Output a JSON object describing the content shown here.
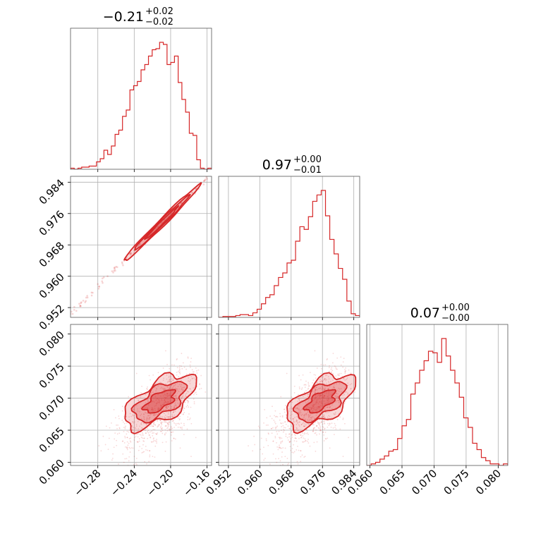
{
  "chart_data": {
    "type": "corner",
    "color": "#d62728",
    "parameters": [
      {
        "title_value": "0.21",
        "title_sign": "−",
        "title_upper": "+0.02",
        "title_lower": "−0.02",
        "range": [
          -0.31,
          -0.155
        ],
        "ticks": [
          -0.28,
          -0.24,
          -0.2,
          -0.16
        ],
        "tick_labels": [
          "−0.28",
          "−0.24",
          "−0.20",
          "−0.16"
        ],
        "hist_values": [
          1,
          0,
          1,
          2,
          2,
          3,
          3,
          7,
          10,
          18,
          14,
          22,
          33,
          37,
          50,
          56,
          75,
          79,
          83,
          94,
          99,
          107,
          113,
          114,
          120,
          118,
          99,
          101,
          107,
          82,
          66,
          54,
          34,
          32,
          9,
          1,
          0,
          1
        ]
      },
      {
        "title_value": "0.97",
        "title_sign": "",
        "title_upper": "+0.00",
        "title_lower": "−0.01",
        "range": [
          0.9495,
          0.9855
        ],
        "ticks": [
          0.952,
          0.96,
          0.968,
          0.976,
          0.984
        ],
        "tick_labels": [
          "0.952",
          "0.960",
          "0.968",
          "0.976",
          "0.984"
        ],
        "hist_values": [
          0,
          1,
          1,
          1,
          2,
          3,
          3,
          2,
          5,
          9,
          15,
          22,
          25,
          35,
          44,
          49,
          60,
          63,
          84,
          100,
          97,
          111,
          128,
          135,
          140,
          112,
          86,
          70,
          54,
          42,
          18,
          4,
          2
        ]
      },
      {
        "title_value": "0.07",
        "title_sign": "",
        "title_upper": "+0.00",
        "title_lower": "−0.00",
        "range": [
          0.0595,
          0.0815
        ],
        "ticks": [
          0.06,
          0.065,
          0.07,
          0.075,
          0.08
        ],
        "tick_labels": [
          "0.060",
          "0.065",
          "0.070",
          "0.075",
          "0.080"
        ],
        "hist_values": [
          0,
          1,
          2,
          4,
          6,
          9,
          10,
          17,
          25,
          29,
          45,
          52,
          60,
          66,
          72,
          71,
          65,
          80,
          69,
          60,
          52,
          43,
          30,
          24,
          14,
          10,
          5,
          3,
          1,
          1,
          0,
          1
        ]
      }
    ],
    "pair_trends": {
      "p1_vs_p0": {
        "slope": 0.233,
        "intercept": 1.0225,
        "spread": 0.0004,
        "x_range": [
          -0.275,
          -0.165
        ]
      },
      "p2_vs_p0": {
        "slope": 0.098,
        "intercept": 0.0903,
        "spread": 0.0026
      },
      "p2_vs_p1": {
        "slope": 0.41,
        "intercept": -0.3309,
        "spread": 0.0026
      }
    },
    "grid": true
  }
}
